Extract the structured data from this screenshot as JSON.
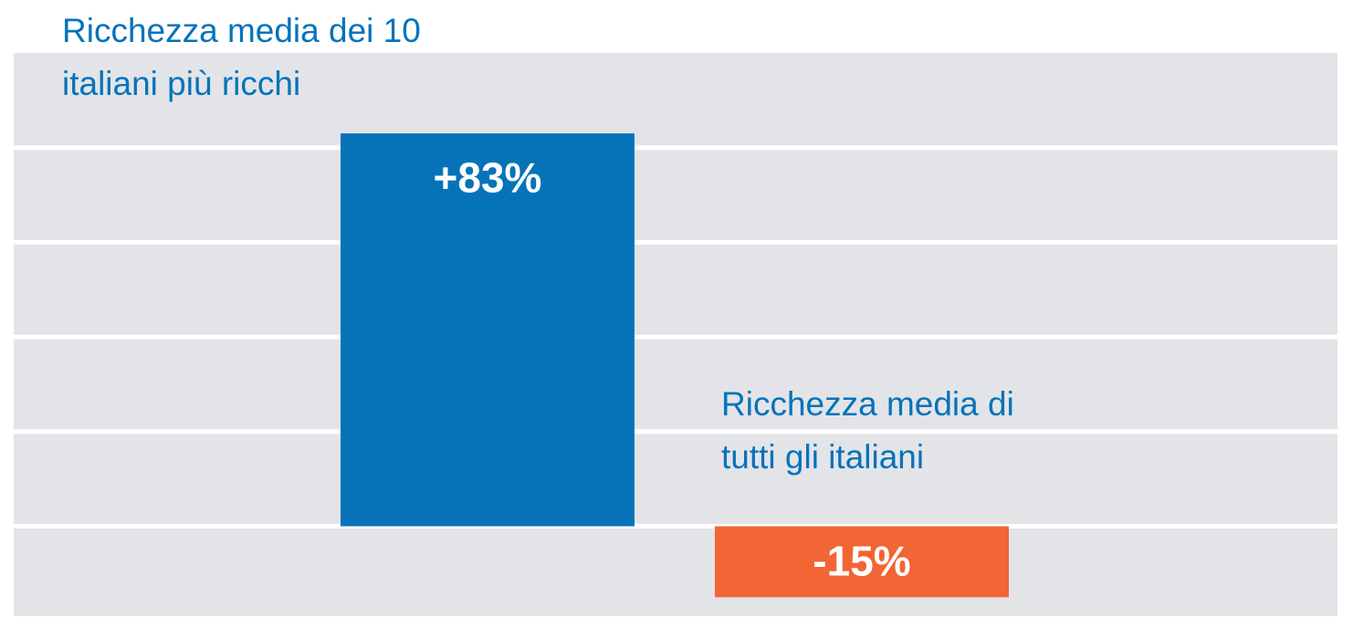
{
  "chart_data": {
    "type": "bar",
    "categories": [
      "Ricchezza media dei 10 italiani più ricchi",
      "Ricchezza media di tutti gli italiani"
    ],
    "values": [
      83,
      -15
    ],
    "value_labels": [
      "+83%",
      "-15%"
    ],
    "colors": [
      "#0673b9",
      "#f26534"
    ],
    "ylim": [
      -19,
      100
    ],
    "yticks": [
      0,
      20,
      40,
      60,
      80
    ],
    "grid": true
  }
}
